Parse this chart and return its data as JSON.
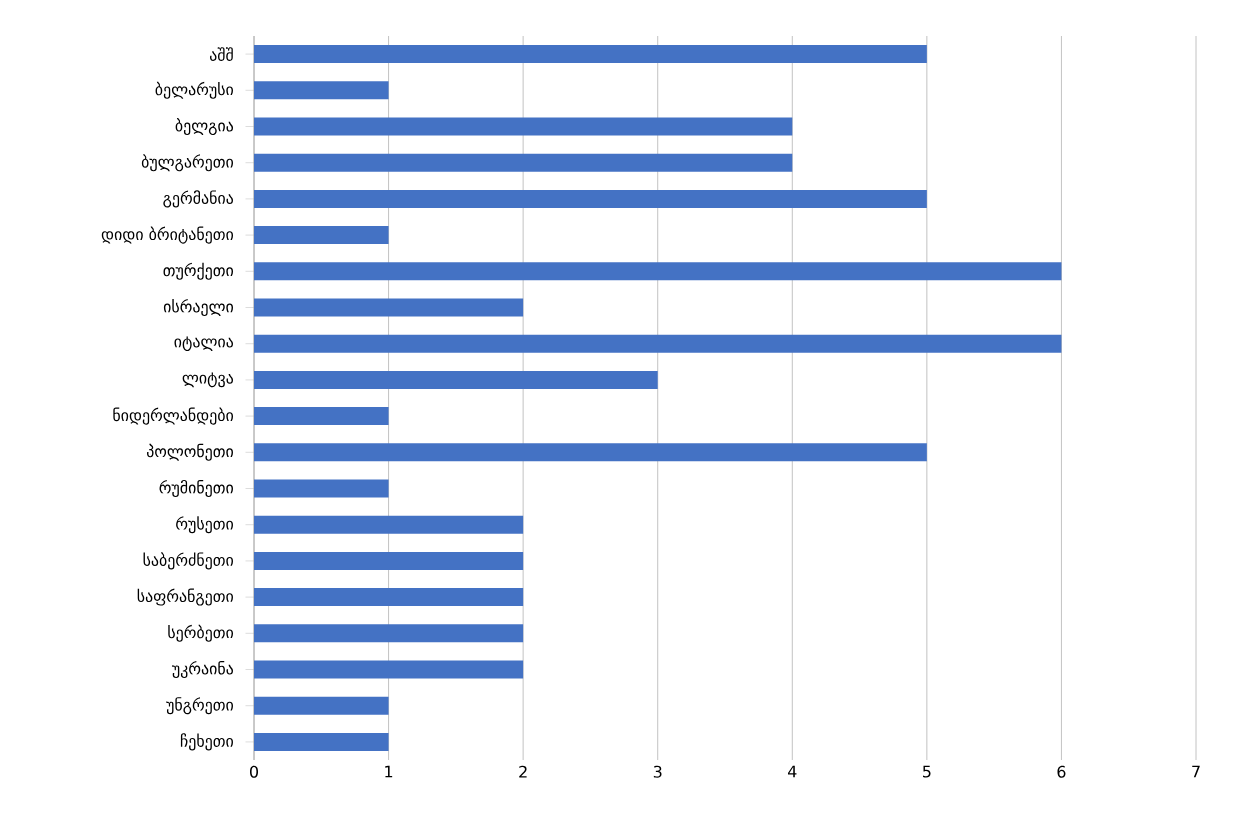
{
  "chart_data": {
    "type": "bar",
    "orientation": "horizontal",
    "categories": [
      "აშშ",
      "ბელარუსი",
      "ბელგია",
      "ბულგარეთი",
      "გერმანია",
      "დიდი ბრიტანეთი",
      "თურქეთი",
      "ისრაელი",
      "იტალია",
      "ლიტვა",
      "ნიდერლანდები",
      "პოლონეთი",
      "რუმინეთი",
      "რუსეთი",
      "საბერძნეთი",
      "საფრანგეთი",
      "სერბეთი",
      "უკრაინა",
      "უნგრეთი",
      "ჩეხეთი"
    ],
    "values": [
      5,
      1,
      4,
      4,
      5,
      1,
      6,
      2,
      6,
      3,
      1,
      5,
      1,
      2,
      2,
      2,
      2,
      2,
      1,
      1
    ],
    "color": "#4472c4",
    "xlim": [
      0,
      7
    ],
    "xticks": [
      0,
      1,
      2,
      3,
      4,
      5,
      6,
      7
    ],
    "grid": "x"
  }
}
